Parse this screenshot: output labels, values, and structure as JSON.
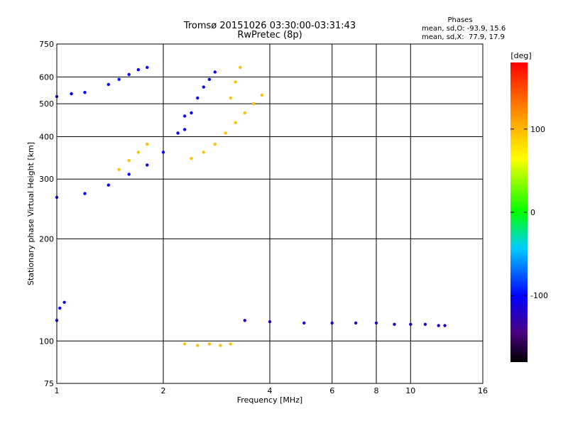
{
  "chart_data": {
    "type": "scatter",
    "title": "Tromsø 20151026 03:30:00-03:31:43",
    "subtitle": "RwPretec (8p)",
    "xlabel": "Frequency [MHz]",
    "ylabel": "Stationary phase Virtual Height [km]",
    "x_scale": "log2",
    "y_scale": "log",
    "xlim": [
      1,
      16
    ],
    "ylim": [
      75,
      750
    ],
    "x_tick_labels": [
      "1",
      "2",
      "4",
      "6",
      "8",
      "10",
      "16"
    ],
    "x_tick_values": [
      1,
      2,
      4,
      6,
      8,
      10,
      16
    ],
    "x_gridlines": [
      2,
      4,
      6,
      8,
      10
    ],
    "y_tick_labels": [
      "75",
      "100",
      "200",
      "300",
      "400",
      "500",
      "600",
      "750"
    ],
    "y_tick_values": [
      75,
      100,
      200,
      300,
      400,
      500,
      600,
      750
    ],
    "y_gridlines": [
      100,
      200,
      300,
      400,
      500,
      600
    ],
    "grid": true,
    "info": {
      "heading": "Phases",
      "line1": "mean, sd,O: -93.9, 15.6",
      "line2": "mean, sd,X:  77.9, 17.9"
    },
    "colorbar": {
      "unit_label": "[deg]",
      "range": [
        -180,
        180
      ],
      "tick_labels": [
        "100",
        "0",
        "-100"
      ],
      "tick_values": [
        100,
        0,
        -100
      ]
    },
    "series": [
      {
        "phase_deg": -100,
        "segments": [
          {
            "x": [
              1.0,
              1.2,
              1.4,
              1.6,
              1.8,
              2.0,
              2.2,
              2.3
            ],
            "y": [
              265,
              272,
              288,
              310,
              330,
              360,
              410,
              460
            ]
          },
          {
            "x": [
              1.4,
              1.5,
              1.6,
              1.7,
              1.8
            ],
            "y": [
              570,
              590,
              610,
              630,
              640
            ]
          },
          {
            "x": [
              1.0,
              1.1,
              1.2
            ],
            "y": [
              525,
              535,
              540
            ]
          },
          {
            "x": [
              2.3,
              2.4,
              2.5,
              2.6,
              2.7,
              2.8
            ],
            "y": [
              420,
              470,
              520,
              560,
              590,
              620
            ]
          },
          {
            "x": [
              1.0,
              1.02,
              1.05
            ],
            "y": [
              115,
              125,
              130
            ]
          }
        ]
      },
      {
        "phase_deg": 95,
        "segments": [
          {
            "x": [
              2.4,
              2.6,
              2.8,
              3.0,
              3.2,
              3.4,
              3.6,
              3.8
            ],
            "y": [
              345,
              360,
              380,
              410,
              440,
              470,
              500,
              530
            ]
          },
          {
            "x": [
              3.1,
              3.2,
              3.3
            ],
            "y": [
              520,
              580,
              640
            ]
          },
          {
            "x": [
              2.3,
              2.5,
              2.7,
              2.9,
              3.1
            ],
            "y": [
              98,
              97,
              98,
              97,
              98
            ]
          },
          {
            "x": [
              1.5,
              1.6,
              1.7,
              1.8
            ],
            "y": [
              320,
              340,
              360,
              380
            ]
          }
        ]
      },
      {
        "phase_deg": -120,
        "segments": [
          {
            "x": [
              3.4,
              4.0,
              5.0,
              6.0,
              7.0,
              8.0,
              9.0,
              10.0,
              11.0,
              12.0,
              12.5
            ],
            "y": [
              115,
              114,
              113,
              113,
              113,
              113,
              112,
              112,
              112,
              111,
              111
            ]
          }
        ]
      }
    ]
  }
}
